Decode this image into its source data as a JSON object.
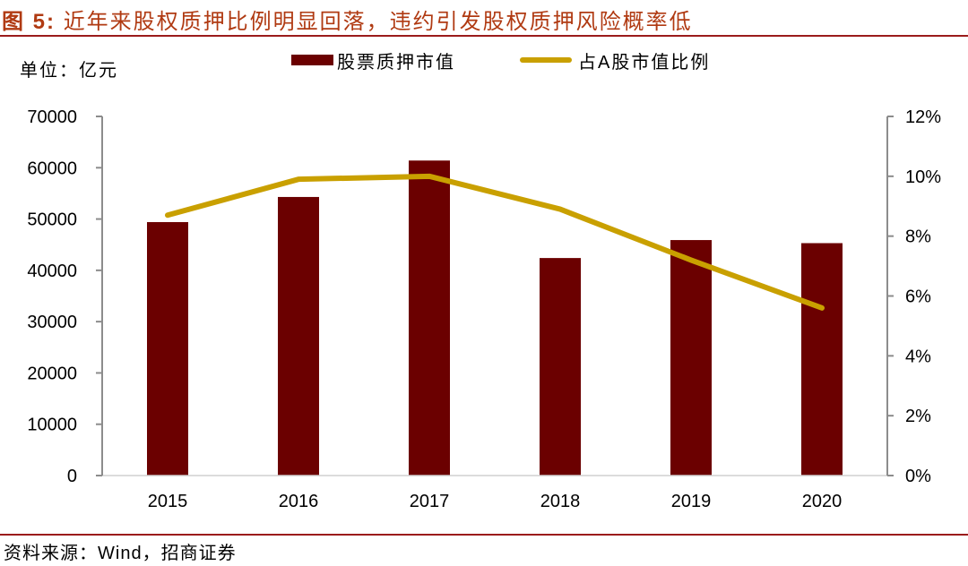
{
  "header": {
    "figure_label": "图 5:",
    "title": "近年来股权质押比例明显回落，违约引发股权质押风险概率低"
  },
  "unit_label": "单位：亿元",
  "footer": {
    "source": "资料来源：Wind，招商证券"
  },
  "colors": {
    "title": "#b03a12",
    "rule": "#9b1b1b",
    "bar": "#6b0000",
    "line": "#c9a000",
    "axis": "#8c8c8c"
  },
  "chart_data": {
    "type": "bar+line",
    "title": "近年来股权质押比例明显回落，违约引发股权质押风险概率低",
    "xlabel": "",
    "ylabel": "单位：亿元",
    "categories": [
      "2015",
      "2016",
      "2017",
      "2018",
      "2019",
      "2020"
    ],
    "series": [
      {
        "name": "股票质押市值",
        "type": "bar",
        "axis": "left",
        "color": "#6b0000",
        "values": [
          49400,
          54300,
          61400,
          42400,
          45900,
          45300
        ]
      },
      {
        "name": "占A股市值比例",
        "type": "line",
        "axis": "right",
        "color": "#c9a000",
        "unit": "%",
        "values": [
          8.7,
          9.9,
          10.0,
          8.9,
          7.2,
          5.6
        ]
      }
    ],
    "left_axis": {
      "ylim": [
        0,
        70000
      ],
      "ticks": [
        "0",
        "10000",
        "20000",
        "30000",
        "40000",
        "50000",
        "60000",
        "70000"
      ]
    },
    "right_axis": {
      "ylim": [
        0,
        12
      ],
      "ticks": [
        "0%",
        "2%",
        "4%",
        "6%",
        "8%",
        "10%",
        "12%"
      ]
    },
    "legend": {
      "position": "top",
      "entries": [
        "股票质押市值",
        "占A股市值比例"
      ]
    },
    "grid": false
  }
}
